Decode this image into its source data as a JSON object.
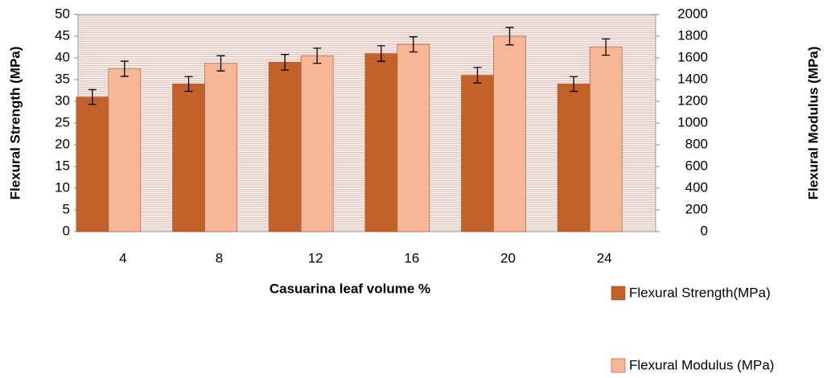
{
  "chart_data": {
    "type": "bar",
    "categories": [
      4,
      8,
      12,
      16,
      20,
      24
    ],
    "xlabel": "Casuarina leaf  volume %",
    "ylabel": "Flexural Strength (MPa)",
    "y2label": "Flexural Modulus (MPa)",
    "series": [
      {
        "name": "Flexural Strength(MPa)",
        "color": "#c2622a",
        "values": [
          31,
          34,
          39,
          41,
          36,
          34
        ],
        "errors": [
          1.7,
          1.7,
          1.8,
          1.8,
          1.8,
          1.7
        ]
      },
      {
        "name": "Flexural Modulus (MPa)",
        "color": "#f7b797",
        "axis": "y2",
        "values": [
          1500,
          1550,
          1620,
          1725,
          1800,
          1700
        ],
        "errors": [
          70,
          70,
          70,
          70,
          80,
          75
        ]
      }
    ],
    "ylim": [
      0,
      50
    ],
    "yticks": [
      0,
      5,
      10,
      15,
      20,
      25,
      30,
      35,
      40,
      45,
      50
    ],
    "y2lim": [
      0,
      2000
    ],
    "y2ticks": [
      0,
      200,
      400,
      600,
      800,
      1000,
      1200,
      1400,
      1600,
      1800,
      2000
    ],
    "legend": "right"
  }
}
